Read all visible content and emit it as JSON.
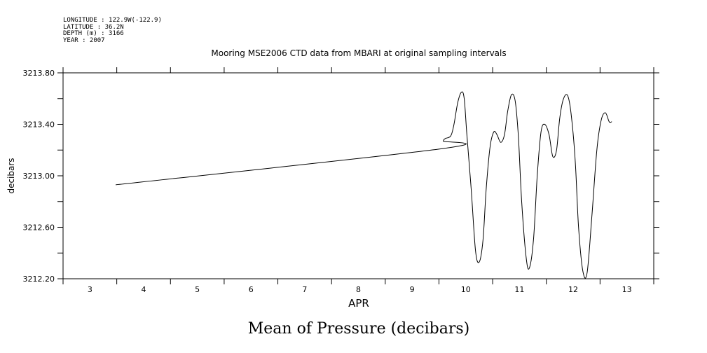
{
  "header": {
    "lines": [
      "LONGITUDE : 122.9W(-122.9)",
      "LATITUDE : 36.2N",
      "DEPTH (m) : 3166",
      "YEAR : 2007"
    ]
  },
  "caption": "Mean of Pressure (decibars)",
  "chart_data": {
    "type": "line",
    "title": "Mooring MSE2006 CTD data from MBARI at original sampling intervals",
    "xlabel": "APR",
    "ylabel": "decibars",
    "xlim": [
      2.5,
      13.5
    ],
    "ylim": [
      3212.2,
      3213.8
    ],
    "x_ticks": [
      3,
      4,
      5,
      6,
      7,
      8,
      9,
      10,
      11,
      12,
      13
    ],
    "x_tick_labels": [
      "3",
      "4",
      "5",
      "6",
      "7",
      "8",
      "9",
      "10",
      "11",
      "12",
      "13"
    ],
    "y_ticks": [
      3212.2,
      3212.6,
      3213.0,
      3213.4,
      3213.8
    ],
    "y_tick_labels": [
      "3212.20",
      "3212.60",
      "3213.00",
      "3213.40",
      "3213.80"
    ],
    "grid": false,
    "series": [
      {
        "x": [
          3.48,
          9.55,
          9.58,
          9.62,
          9.72,
          9.78,
          9.85,
          9.92,
          9.97,
          10.02,
          10.1,
          10.18,
          10.25,
          10.32,
          10.38,
          10.45,
          10.52,
          10.58,
          10.65,
          10.72,
          10.78,
          10.85,
          10.92,
          10.98,
          11.04,
          11.12,
          11.18,
          11.26,
          11.33,
          11.4,
          11.47,
          11.55,
          11.62,
          11.69,
          11.75,
          11.82,
          11.9,
          11.97,
          12.04,
          12.1,
          12.18,
          12.26,
          12.35,
          12.44,
          12.52,
          12.6,
          12.67,
          12.72
        ],
        "y": [
          3212.93,
          3213.21,
          3213.27,
          3213.29,
          3213.31,
          3213.4,
          3213.57,
          3213.65,
          3213.6,
          3213.32,
          3212.9,
          3212.42,
          3212.33,
          3212.5,
          3212.9,
          3213.22,
          3213.34,
          3213.32,
          3213.26,
          3213.32,
          3213.5,
          3213.63,
          3213.58,
          3213.3,
          3212.8,
          3212.38,
          3212.28,
          3212.5,
          3213.0,
          3213.34,
          3213.4,
          3213.32,
          3213.15,
          3213.2,
          3213.45,
          3213.6,
          3213.62,
          3213.45,
          3213.1,
          3212.6,
          3212.26,
          3212.25,
          3212.7,
          3213.2,
          3213.43,
          3213.49,
          3213.42,
          3213.42
        ]
      }
    ]
  }
}
